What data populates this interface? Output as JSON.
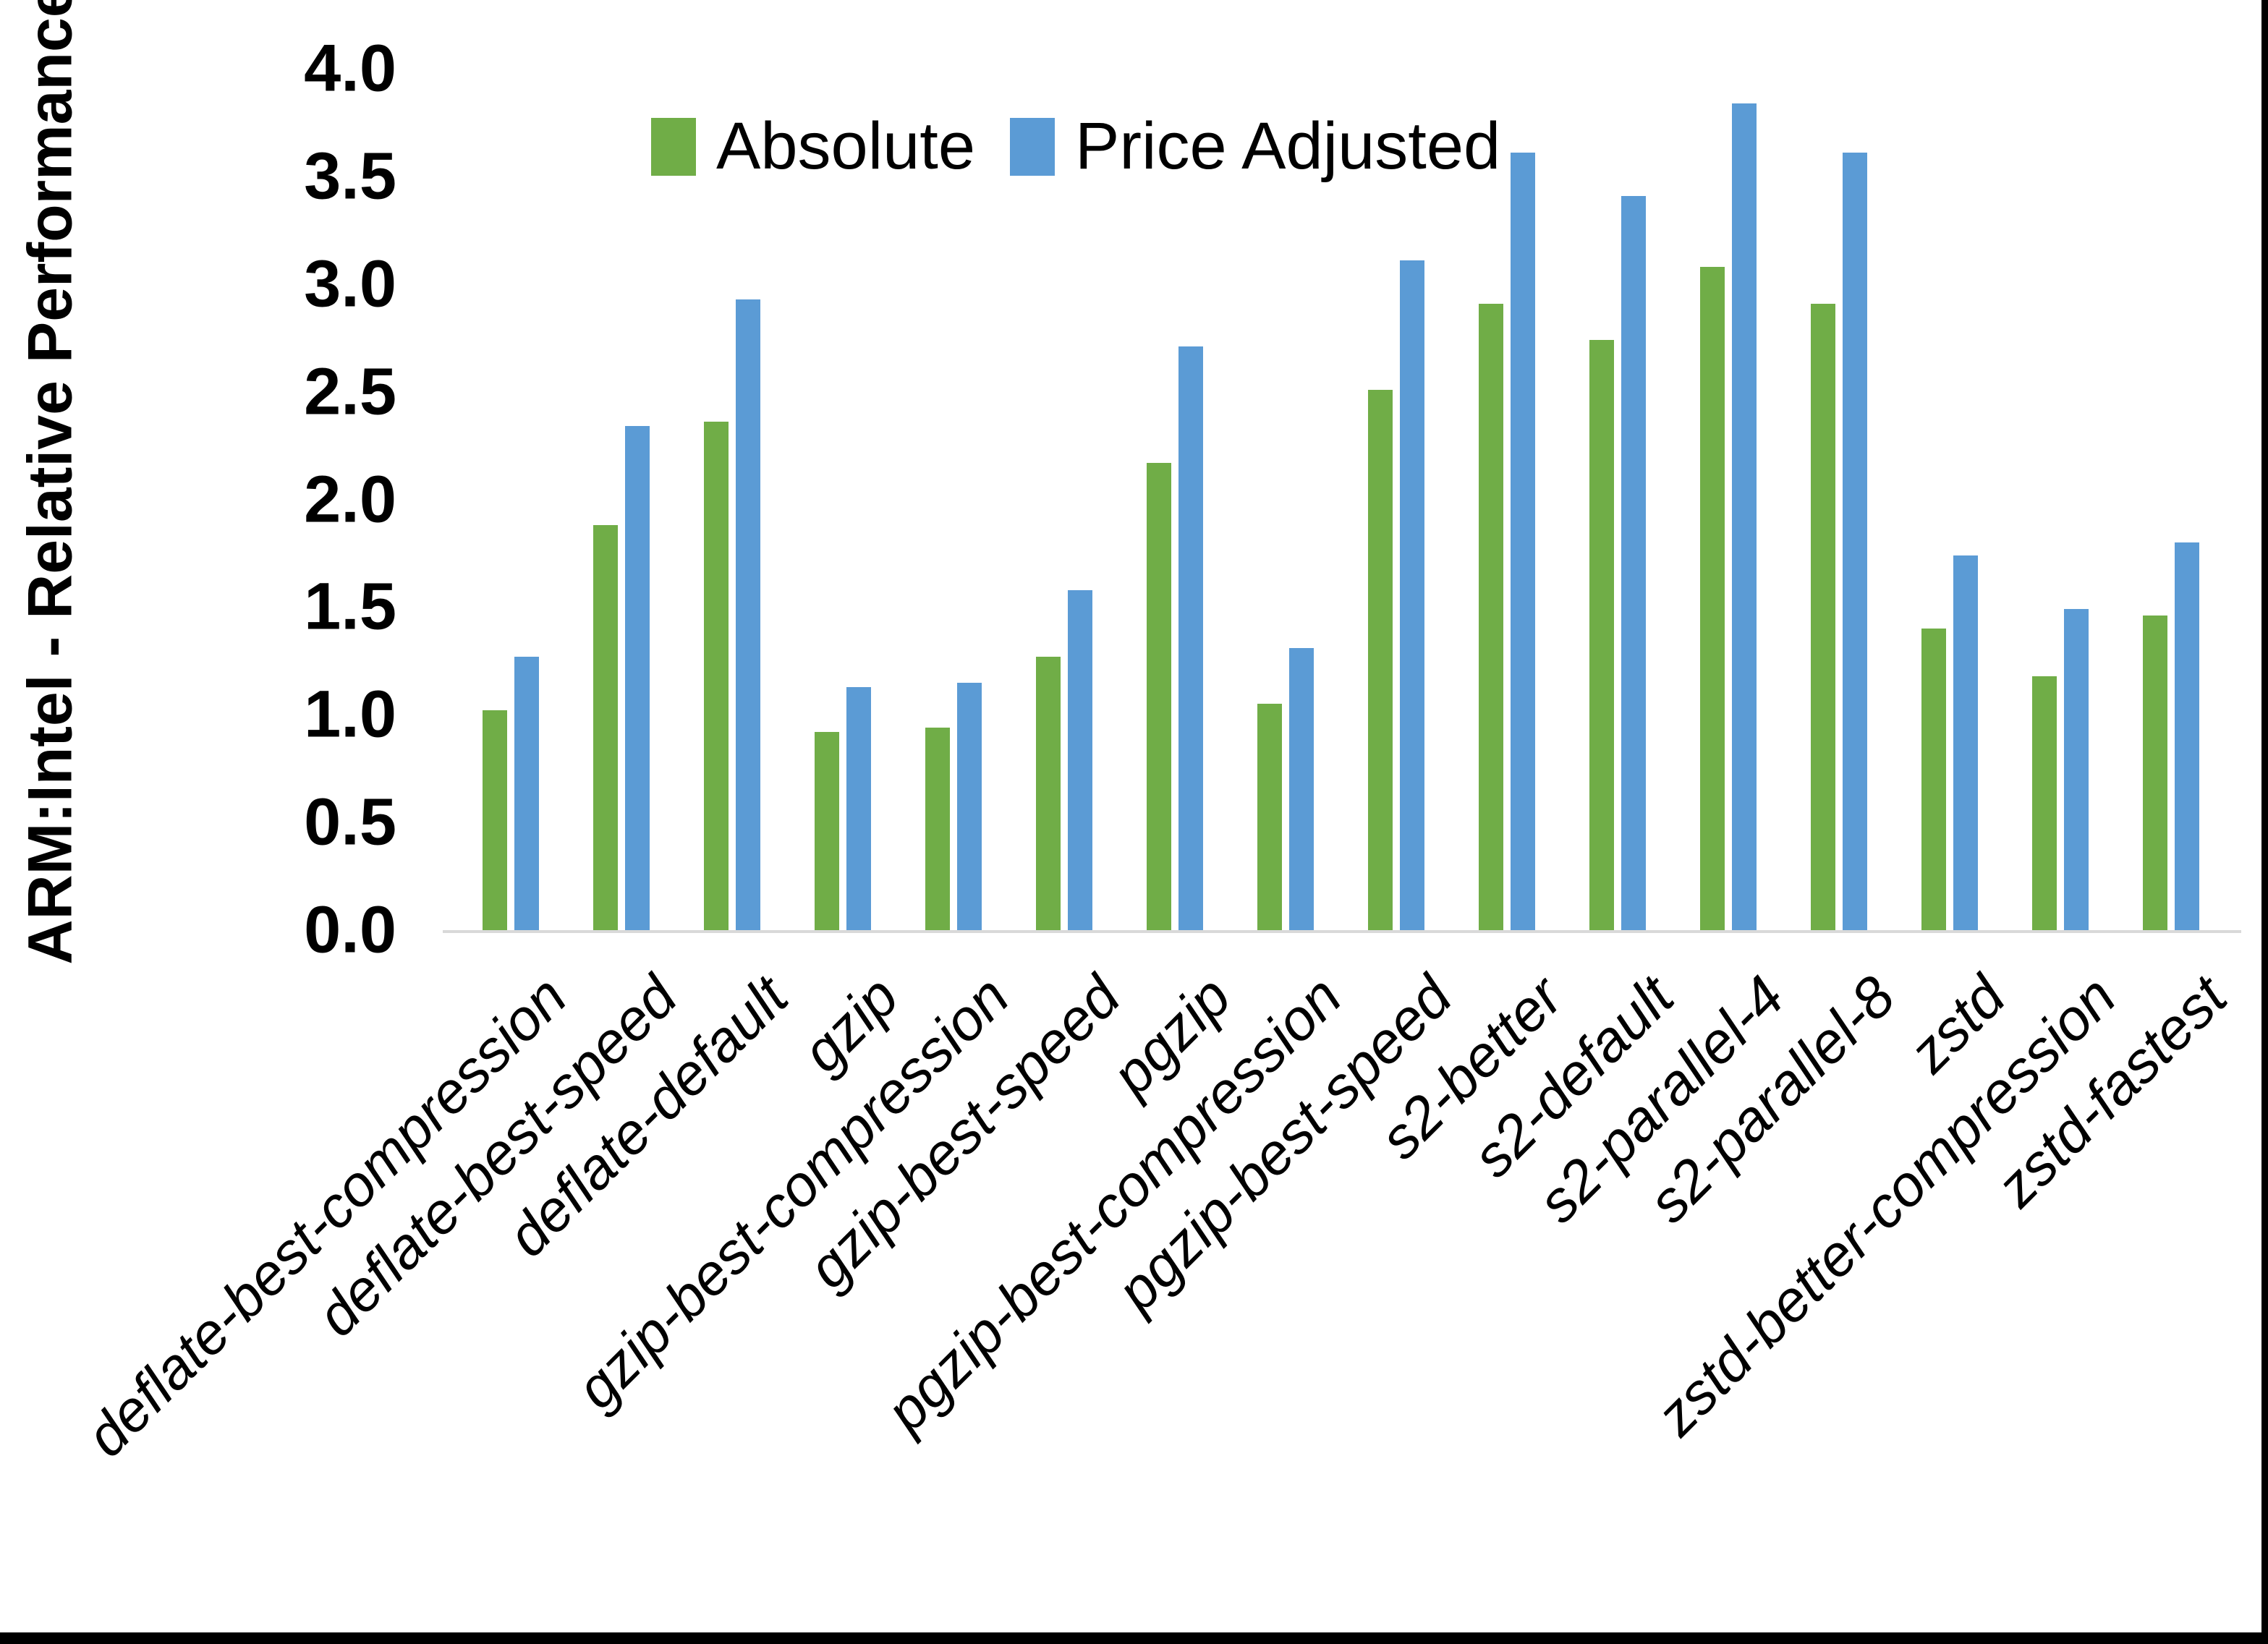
{
  "chart_data": {
    "type": "bar",
    "title": "",
    "ylabel": "ARM:Intel - Relative Performance",
    "xlabel": "",
    "ylim": [
      0.0,
      4.0
    ],
    "ytick_step": 0.5,
    "yticks": [
      "0.0",
      "0.5",
      "1.0",
      "1.5",
      "2.0",
      "2.5",
      "3.0",
      "3.5",
      "4.0"
    ],
    "grid": false,
    "legend_position": "top-center",
    "categories": [
      "deflate-best-compression",
      "deflate-best-speed",
      "deflate-default",
      "gzip",
      "gzip-best-compression",
      "gzip-best-speed",
      "pgzip",
      "pgzip-best-compression",
      "pgzip-best-speed",
      "s2-better",
      "s2-default",
      "s2-parallel-4",
      "s2-parallel-8",
      "zstd",
      "zstd-better-compression",
      "zstd-fastest"
    ],
    "series": [
      {
        "name": "Absolute",
        "color": "#70AD47",
        "values": [
          1.02,
          1.88,
          2.36,
          0.92,
          0.94,
          1.27,
          2.17,
          1.05,
          2.51,
          2.91,
          2.74,
          3.08,
          2.91,
          1.4,
          1.18,
          1.46
        ]
      },
      {
        "name": "Price Adjusted",
        "color": "#5B9BD5",
        "values": [
          1.27,
          2.34,
          2.93,
          1.13,
          1.15,
          1.58,
          2.71,
          1.31,
          3.11,
          3.61,
          3.41,
          3.84,
          3.61,
          1.74,
          1.49,
          1.8
        ]
      }
    ],
    "axis_line_color": "#D9D9D9",
    "text_color": "#000000"
  },
  "frame": {
    "right_border_color": "#000000",
    "bottom_border_color": "#000000"
  }
}
